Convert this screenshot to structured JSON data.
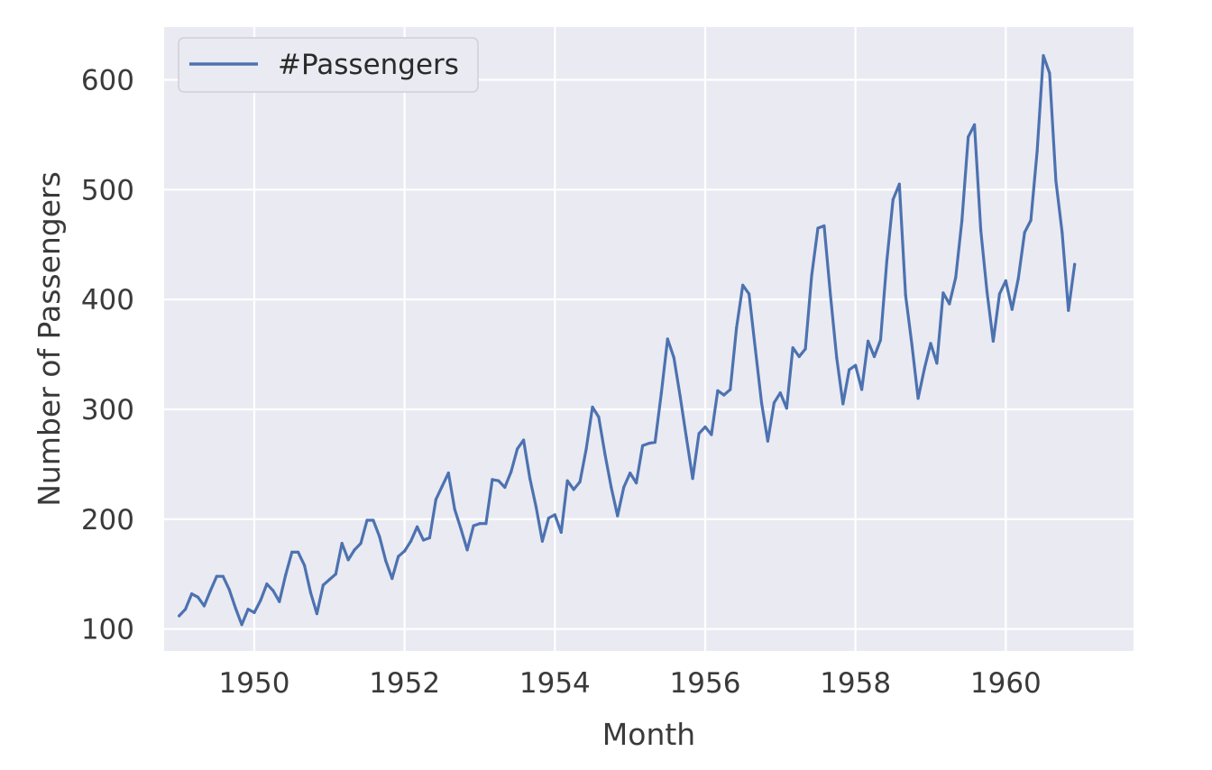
{
  "chart_data": {
    "type": "line",
    "title": "",
    "xlabel": "Month",
    "ylabel": "Number of Passengers",
    "x_start": "1949-01",
    "x_end": "1960-12",
    "x_frequency": "monthly",
    "xlim": [
      1948.8,
      1961.7
    ],
    "ylim": [
      80,
      648
    ],
    "x_ticks": [
      1950,
      1952,
      1954,
      1956,
      1958,
      1960
    ],
    "x_tick_labels": [
      "1950",
      "1952",
      "1954",
      "1956",
      "1958",
      "1960"
    ],
    "y_ticks": [
      100,
      200,
      300,
      400,
      500,
      600
    ],
    "y_tick_labels": [
      "100",
      "200",
      "300",
      "400",
      "500",
      "600"
    ],
    "grid": true,
    "legend": {
      "position": "top-left",
      "entries": [
        "#Passengers"
      ]
    },
    "series": [
      {
        "name": "#Passengers",
        "color": "#4c72b0",
        "values": [
          112,
          118,
          132,
          129,
          121,
          135,
          148,
          148,
          136,
          119,
          104,
          118,
          115,
          126,
          141,
          135,
          125,
          149,
          170,
          170,
          158,
          133,
          114,
          140,
          145,
          150,
          178,
          163,
          172,
          178,
          199,
          199,
          184,
          162,
          146,
          166,
          171,
          180,
          193,
          181,
          183,
          218,
          230,
          242,
          209,
          191,
          172,
          194,
          196,
          196,
          236,
          235,
          229,
          243,
          264,
          272,
          237,
          211,
          180,
          201,
          204,
          188,
          235,
          227,
          234,
          264,
          302,
          293,
          259,
          229,
          203,
          229,
          242,
          233,
          267,
          269,
          270,
          315,
          364,
          347,
          312,
          274,
          237,
          278,
          284,
          277,
          317,
          313,
          318,
          374,
          413,
          405,
          355,
          306,
          271,
          306,
          315,
          301,
          356,
          348,
          355,
          422,
          465,
          467,
          404,
          347,
          305,
          336,
          340,
          318,
          362,
          348,
          363,
          435,
          491,
          505,
          404,
          359,
          310,
          337,
          360,
          342,
          406,
          396,
          420,
          472,
          548,
          559,
          463,
          407,
          362,
          405,
          417,
          391,
          419,
          461,
          472,
          535,
          622,
          606,
          508,
          461,
          390,
          432
        ]
      }
    ],
    "colors": {
      "background": "#eaeaf2",
      "grid": "#ffffff",
      "line": "#4c72b0"
    }
  }
}
